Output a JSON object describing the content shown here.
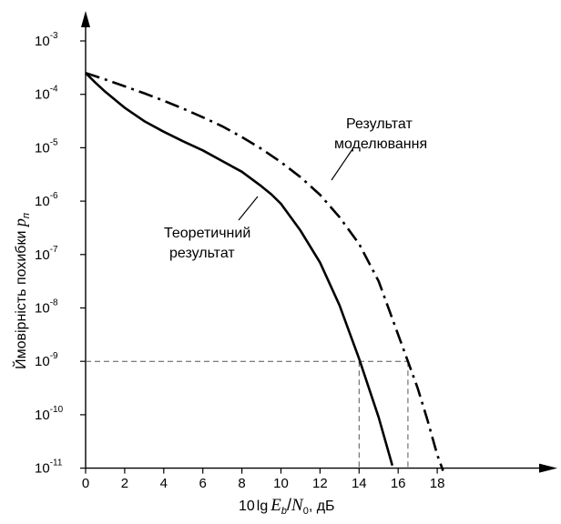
{
  "chart_data": {
    "type": "line",
    "xlabel": {
      "prefix": "10",
      "lg": "lg",
      "Eb": "E",
      "Eb_sub": "b",
      "slash": "/",
      "N0": "N",
      "N0_sub": "0",
      "unit": ", дБ"
    },
    "ylabel": {
      "text": "Ймовірність похибки ",
      "var": "p",
      "var_sub": "п"
    },
    "xlim": [
      0,
      19.5
    ],
    "ylim_log10": [
      -11,
      -3
    ],
    "y_scale": "log",
    "x_ticks": [
      "0",
      "2",
      "4",
      "6",
      "8",
      "10",
      "12",
      "14",
      "16",
      "18"
    ],
    "y_ticks": [
      {
        "base": "10",
        "exp": "-3"
      },
      {
        "base": "10",
        "exp": "-4"
      },
      {
        "base": "10",
        "exp": "-5"
      },
      {
        "base": "10",
        "exp": "-6"
      },
      {
        "base": "10",
        "exp": "-7"
      },
      {
        "base": "10",
        "exp": "-8"
      },
      {
        "base": "10",
        "exp": "-9"
      },
      {
        "base": "10",
        "exp": "-10"
      },
      {
        "base": "10",
        "exp": "-11"
      }
    ],
    "grid": false,
    "series": [
      {
        "label": [
          "Теоретичний",
          "результат"
        ],
        "style": "solid",
        "x": [
          0,
          0.5,
          1,
          2,
          3,
          4,
          5,
          6,
          7,
          8,
          9,
          9.5,
          10,
          11,
          12,
          13,
          14,
          15,
          15.7
        ],
        "log10_y": [
          -3.6,
          -3.78,
          -3.95,
          -4.25,
          -4.5,
          -4.7,
          -4.88,
          -5.05,
          -5.25,
          -5.45,
          -5.72,
          -5.87,
          -6.05,
          -6.55,
          -7.15,
          -7.95,
          -8.95,
          -10.05,
          -10.95
        ]
      },
      {
        "label": [
          "Результат",
          "моделювання"
        ],
        "style": "dash-dot",
        "x": [
          0,
          1,
          2,
          3,
          4,
          5,
          6,
          7,
          8,
          9,
          10,
          11,
          12,
          13,
          14,
          15,
          16,
          16.5,
          17,
          17.5,
          18,
          18.3
        ],
        "log10_y": [
          -3.6,
          -3.72,
          -3.85,
          -3.98,
          -4.12,
          -4.27,
          -4.43,
          -4.6,
          -4.8,
          -5.02,
          -5.27,
          -5.55,
          -5.88,
          -6.3,
          -6.8,
          -7.5,
          -8.5,
          -9.0,
          -9.5,
          -10.1,
          -10.75,
          -11.05
        ]
      }
    ],
    "reference": {
      "level_log10": -9,
      "x_marks": [
        14,
        16.5
      ],
      "style": "dashed"
    }
  }
}
